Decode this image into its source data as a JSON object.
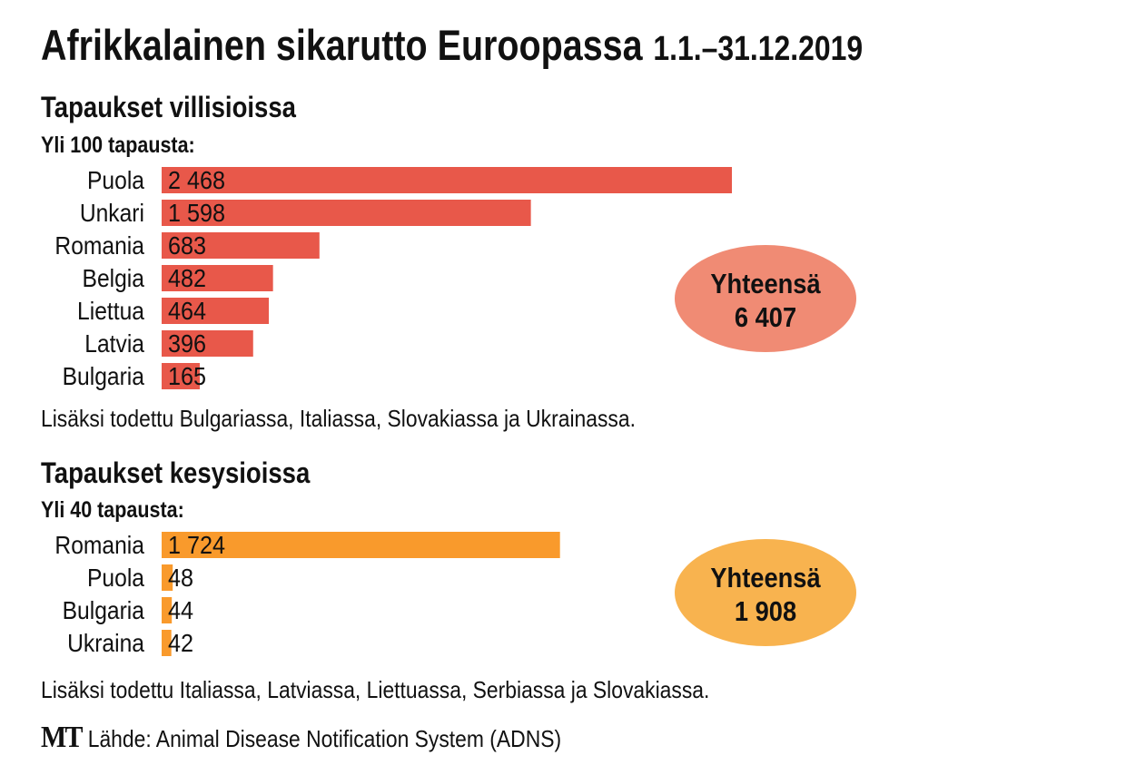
{
  "title": "Afrikkalainen sikarutto Euroopassa",
  "period": "1.1.–31.12.2019",
  "source_logo": "MT",
  "source": "Lähde: Animal Disease Notification System (ADNS)",
  "colors": {
    "wild": "#e8584a",
    "wild_total": "#f08b74",
    "domestic": "#f99a2c",
    "domestic_total": "#f8b34f"
  },
  "chart_data": [
    {
      "type": "bar",
      "orientation": "horizontal",
      "title": "Tapaukset villisioissa",
      "subtitle": "Yli 100 tapausta:",
      "categories": [
        "Puola",
        "Unkari",
        "Romania",
        "Belgia",
        "Liettua",
        "Latvia",
        "Bulgaria"
      ],
      "values": [
        2468,
        1598,
        683,
        482,
        464,
        396,
        165
      ],
      "value_labels": [
        "2 468",
        "1 598",
        "683",
        "482",
        "464",
        "396",
        "165"
      ],
      "total_label": "Yhteensä",
      "total_value": "6 407",
      "note": "Lisäksi todettu Bulgariassa, Italiassa, Slovakiassa ja Ukrainassa."
    },
    {
      "type": "bar",
      "orientation": "horizontal",
      "title": "Tapaukset kesysioissa",
      "subtitle": "Yli 40 tapausta:",
      "categories": [
        "Romania",
        "Puola",
        "Bulgaria",
        "Ukraina"
      ],
      "values": [
        1724,
        48,
        44,
        42
      ],
      "value_labels": [
        "1 724",
        "48",
        "44",
        "42"
      ],
      "total_label": "Yhteensä",
      "total_value": "1 908",
      "note": "Lisäksi todettu Italiassa, Latviassa, Liettuassa, Serbiassa ja Slovakiassa."
    }
  ]
}
